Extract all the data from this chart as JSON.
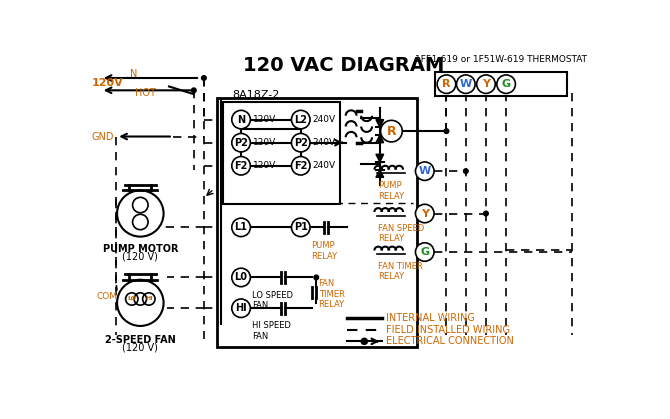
{
  "title": "120 VAC DIAGRAM",
  "title_fontsize": 14,
  "bg_color": "#ffffff",
  "black": "#000000",
  "orange": "#cc6600",
  "blue": "#3366cc",
  "green": "#228B22",
  "thermostat_label": "1F51-619 or 1F51W-619 THERMOSTAT",
  "thermostat_terminals": [
    "R",
    "W",
    "Y",
    "G"
  ],
  "thermostat_colors": [
    "#cc6600",
    "#3366cc",
    "#cc6600",
    "#228B22"
  ],
  "control_label": "8A18Z-2",
  "relay_texts": [
    "PUMP\nRELAY",
    "FAN SPEED\nRELAY",
    "FAN TIMER\nRELAY"
  ],
  "relay_terminal_labels": [
    "W",
    "Y",
    "G"
  ],
  "relay_terminal_colors": [
    "#3366cc",
    "#cc6600",
    "#228B22"
  ],
  "legend_internal": "INTERNAL WIRING",
  "legend_field": "FIELD INSTALLED WIRING",
  "legend_electrical": "ELECTRICAL CONNECTION"
}
